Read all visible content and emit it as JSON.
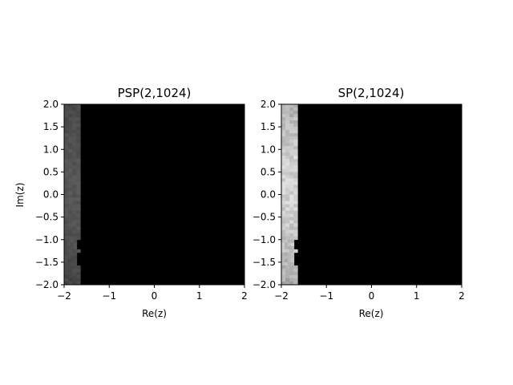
{
  "chart_data": [
    {
      "type": "heatmap",
      "title": "PSP(2,1024)",
      "xlabel": "Re(z)",
      "ylabel": "Im(z)",
      "xlim": [
        -2,
        2
      ],
      "ylim": [
        -2,
        2
      ],
      "x_ticks": [
        "−2",
        "−1",
        "0",
        "1",
        "2"
      ],
      "y_ticks": [
        "−2.0",
        "−1.5",
        "−1.0",
        "−0.5",
        "0.0",
        "0.5",
        "1.0",
        "1.5",
        "2.0"
      ],
      "x_tick_values": [
        -2,
        -1,
        0,
        1,
        2
      ],
      "y_tick_values": [
        -2,
        -1.5,
        -1,
        -0.5,
        0,
        0.5,
        1,
        1.5,
        2
      ],
      "colormap": "gray",
      "grid": false,
      "bright_band": {
        "x_from": -2.0,
        "x_to": -1.64,
        "notch_y": [
          -1.6,
          -1.0
        ],
        "notch_x_to": -1.72
      },
      "intensity_range": [
        0.18,
        0.36
      ]
    },
    {
      "type": "heatmap",
      "title": "SP(2,1024)",
      "xlabel": "Re(z)",
      "ylabel": "",
      "xlim": [
        -2,
        2
      ],
      "ylim": [
        -2,
        2
      ],
      "x_ticks": [
        "−2",
        "−1",
        "0",
        "1",
        "2"
      ],
      "y_ticks": [
        "−2.0",
        "−1.5",
        "−1.0",
        "−0.5",
        "0.0",
        "0.5",
        "1.0",
        "1.5",
        "2.0"
      ],
      "x_tick_values": [
        -2,
        -1,
        0,
        1,
        2
      ],
      "y_tick_values": [
        -2,
        -1.5,
        -1,
        -0.5,
        0,
        0.5,
        1,
        1.5,
        2
      ],
      "colormap": "gray",
      "grid": false,
      "bright_band": {
        "x_from": -2.0,
        "x_to": -1.64,
        "notch_y": [
          -1.6,
          -1.0
        ],
        "notch_x_to": -1.72
      },
      "intensity_range": [
        0.45,
        0.88
      ]
    }
  ],
  "colors": {
    "background": "#ffffff",
    "plot_fill": "#000000",
    "axis": "#000000",
    "text": "#000000"
  }
}
